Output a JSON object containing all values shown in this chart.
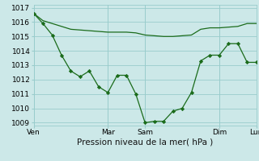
{
  "background_color": "#cce8e8",
  "grid_color": "#99cccc",
  "line_color": "#1a6b1a",
  "series1_x": [
    0,
    1,
    2,
    3,
    4,
    5,
    6,
    7,
    8,
    9,
    10,
    11,
    12,
    13,
    14,
    15,
    16,
    17,
    18,
    19,
    20,
    21,
    22,
    23,
    24
  ],
  "series1_y": [
    1016.6,
    1015.9,
    1015.1,
    1013.7,
    1012.6,
    1012.2,
    1012.6,
    1011.5,
    1011.1,
    1012.3,
    1012.3,
    1011.0,
    1009.0,
    1009.1,
    1009.1,
    1009.8,
    1010.0,
    1011.1,
    1013.3,
    1013.7,
    1013.7,
    1014.5,
    1014.5,
    1013.2,
    1013.2
  ],
  "series2_x": [
    0,
    1,
    2,
    3,
    4,
    5,
    6,
    7,
    8,
    9,
    10,
    11,
    12,
    13,
    14,
    15,
    16,
    17,
    18,
    19,
    20,
    21,
    22,
    23,
    24
  ],
  "series2_y": [
    1016.6,
    1016.1,
    1015.9,
    1015.7,
    1015.5,
    1015.45,
    1015.4,
    1015.35,
    1015.3,
    1015.3,
    1015.3,
    1015.25,
    1015.1,
    1015.05,
    1015.0,
    1015.0,
    1015.05,
    1015.1,
    1015.5,
    1015.6,
    1015.6,
    1015.65,
    1015.7,
    1015.9,
    1015.9
  ],
  "xtick_positions": [
    0,
    8,
    12,
    20,
    24
  ],
  "xtick_labels": [
    "Ven",
    "Mar",
    "Sam",
    "Dim",
    "Lun"
  ],
  "ylim": [
    1008.8,
    1017.2
  ],
  "ytick_values": [
    1009,
    1010,
    1011,
    1012,
    1013,
    1014,
    1015,
    1016,
    1017
  ],
  "xlabel": "Pression niveau de la mer( hPa )",
  "xlabel_fontsize": 7.5,
  "tick_fontsize": 6.5
}
